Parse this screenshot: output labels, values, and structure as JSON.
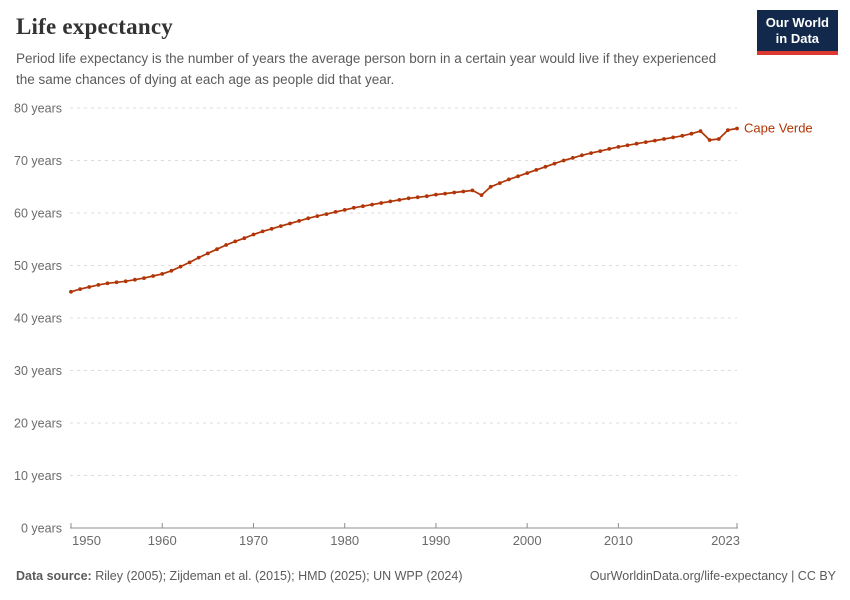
{
  "header": {
    "title": "Life expectancy",
    "subtitle": "Period life expectancy is the number of years the average person born in a certain year would live if they experienced the same chances of dying at each age as people did that year.",
    "logo_line1": "Our World",
    "logo_line2": "in Data"
  },
  "chart_data": {
    "type": "line",
    "title": "Life expectancy",
    "series_label": "Cape Verde",
    "unit_suffix": " years",
    "x": [
      1950,
      1951,
      1952,
      1953,
      1954,
      1955,
      1956,
      1957,
      1958,
      1959,
      1960,
      1961,
      1962,
      1963,
      1964,
      1965,
      1966,
      1967,
      1968,
      1969,
      1970,
      1971,
      1972,
      1973,
      1974,
      1975,
      1976,
      1977,
      1978,
      1979,
      1980,
      1981,
      1982,
      1983,
      1984,
      1985,
      1986,
      1987,
      1988,
      1989,
      1990,
      1991,
      1992,
      1993,
      1994,
      1995,
      1996,
      1997,
      1998,
      1999,
      2000,
      2001,
      2002,
      2003,
      2004,
      2005,
      2006,
      2007,
      2008,
      2009,
      2010,
      2011,
      2012,
      2013,
      2014,
      2015,
      2016,
      2017,
      2018,
      2019,
      2020,
      2021,
      2022,
      2023
    ],
    "values": [
      45.0,
      45.5,
      45.9,
      46.3,
      46.6,
      46.8,
      47.0,
      47.3,
      47.6,
      48.0,
      48.4,
      49.0,
      49.8,
      50.6,
      51.5,
      52.3,
      53.1,
      53.9,
      54.6,
      55.2,
      55.9,
      56.5,
      57.0,
      57.5,
      58.0,
      58.5,
      59.0,
      59.4,
      59.8,
      60.2,
      60.6,
      61.0,
      61.3,
      61.6,
      61.9,
      62.2,
      62.5,
      62.8,
      63.0,
      63.2,
      63.5,
      63.7,
      63.9,
      64.1,
      64.3,
      63.4,
      65.0,
      65.7,
      66.4,
      67.0,
      67.6,
      68.2,
      68.8,
      69.4,
      70.0,
      70.5,
      71.0,
      71.4,
      71.8,
      72.2,
      72.6,
      72.9,
      73.2,
      73.5,
      73.8,
      74.1,
      74.4,
      74.7,
      75.1,
      75.6,
      73.9,
      74.1,
      75.8,
      76.1
    ],
    "xticks": [
      1950,
      1960,
      1970,
      1980,
      1990,
      2000,
      2010,
      2023
    ],
    "yticks": [
      0,
      10,
      20,
      30,
      40,
      50,
      60,
      70,
      80
    ],
    "xlim": [
      1950,
      2023
    ],
    "ylim": [
      0,
      80
    ],
    "grid": "horizontal-dashed",
    "legend_position": "end-of-line",
    "style": {
      "line_color": "#b13507",
      "label_color": "#b13507",
      "grid_color": "#dcdcdc",
      "axis_color": "#8f8f8f",
      "tick_text_color": "#6b6b6b",
      "brand_navy": "#13294b",
      "brand_red": "#dc3930"
    }
  },
  "footer": {
    "data_source_label": "Data source:",
    "data_source_value": "Riley (2005); Zijdeman et al. (2015); HMD (2025); UN WPP (2024)",
    "link_text": "OurWorldinData.org/life-expectancy | CC BY"
  }
}
